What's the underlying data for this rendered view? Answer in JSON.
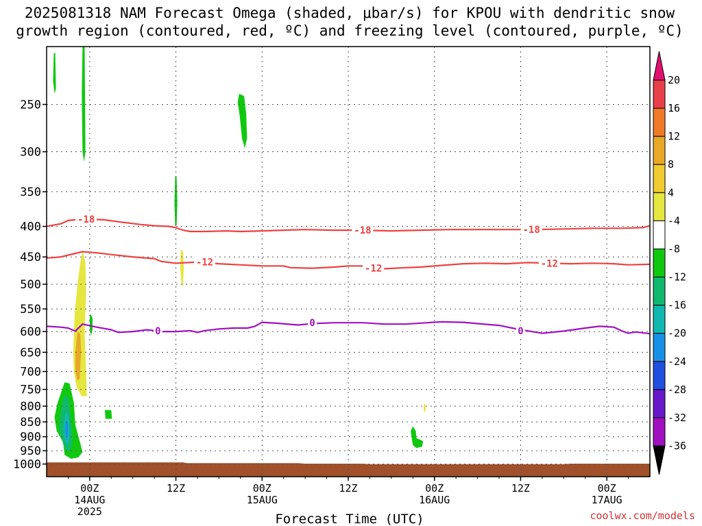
{
  "header": {
    "title_line1": "2025081318 NAM Forecast Omega (shaded, μbar/s) for KPOU with dendritic snow",
    "title_line2": "growth region (contoured, red, ºC) and freezing level (contoured, purple, ºC)"
  },
  "watermark": "coolwx.com/models",
  "chart_data": {
    "type": "time-height cross-section",
    "xlabel": "Forecast Time (UTC)",
    "xlim_hours": [
      0,
      84
    ],
    "x_ticks": [
      {
        "hour": 6,
        "label": "00Z",
        "sub1": "14AUG",
        "sub2": "2025"
      },
      {
        "hour": 18,
        "label": "12Z",
        "sub1": "",
        "sub2": ""
      },
      {
        "hour": 30,
        "label": "00Z",
        "sub1": "15AUG",
        "sub2": ""
      },
      {
        "hour": 42,
        "label": "12Z",
        "sub1": "",
        "sub2": ""
      },
      {
        "hour": 54,
        "label": "00Z",
        "sub1": "16AUG",
        "sub2": ""
      },
      {
        "hour": 66,
        "label": "12Z",
        "sub1": "",
        "sub2": ""
      },
      {
        "hour": 78,
        "label": "00Z",
        "sub1": "17AUG",
        "sub2": ""
      }
    ],
    "ylabel": "",
    "y_scale": "log-pressure",
    "ylim_hPa": [
      1050,
      200
    ],
    "y_ticks": [
      250,
      300,
      350,
      400,
      450,
      500,
      550,
      600,
      650,
      700,
      750,
      800,
      850,
      900,
      950,
      1000
    ],
    "y_tick_labels": [
      "250",
      "300",
      "350",
      "400",
      "450",
      "500",
      "550",
      "600",
      "650",
      "700",
      "750",
      "800",
      "850",
      "900",
      "950",
      "1000"
    ],
    "grid": true,
    "colorbar": {
      "labels": [
        "20",
        "16",
        "12",
        "8",
        "4",
        "-4",
        "-8",
        "-12",
        "-16",
        "-20",
        "-24",
        "-28",
        "-32",
        "-36"
      ],
      "colors": [
        "#e8404a",
        "#f07a28",
        "#e8a828",
        "#f0cc30",
        "#e6e640",
        "#ffffff",
        "#10c810",
        "#10b870",
        "#10b8b0",
        "#1890e8",
        "#2050e0",
        "#6818c8",
        "#a010c0",
        "#a8a8a8"
      ],
      "top_arrow_color": "#e0106e",
      "bottom_arrow_color": "#000000"
    },
    "contours": [
      {
        "name": "-18",
        "color": "#ee4040",
        "points": [
          [
            0,
            400
          ],
          [
            2,
            396
          ],
          [
            3,
            391
          ],
          [
            5,
            389
          ],
          [
            8,
            390
          ],
          [
            10,
            393
          ],
          [
            13,
            397
          ],
          [
            15,
            399
          ],
          [
            17,
            400
          ],
          [
            18,
            402
          ],
          [
            19,
            406
          ],
          [
            20,
            408
          ],
          [
            22,
            408
          ],
          [
            25,
            407
          ],
          [
            27,
            408
          ],
          [
            30,
            407
          ],
          [
            33,
            406
          ],
          [
            36,
            405
          ],
          [
            40,
            406
          ],
          [
            44,
            406
          ],
          [
            48,
            407
          ],
          [
            52,
            406
          ],
          [
            56,
            405
          ],
          [
            60,
            405
          ],
          [
            64,
            405
          ],
          [
            68,
            405
          ],
          [
            72,
            404
          ],
          [
            76,
            403
          ],
          [
            80,
            403
          ],
          [
            83,
            402
          ],
          [
            84,
            399
          ]
        ],
        "labels": [
          [
            5.5,
            389
          ],
          [
            44,
            406
          ],
          [
            67.5,
            405
          ]
        ]
      },
      {
        "name": "-12",
        "color": "#ee4040",
        "points": [
          [
            0,
            452
          ],
          [
            2,
            450
          ],
          [
            4,
            444
          ],
          [
            5,
            441
          ],
          [
            7,
            443
          ],
          [
            9,
            446
          ],
          [
            12,
            450
          ],
          [
            15,
            453
          ],
          [
            16,
            458
          ],
          [
            18,
            461
          ],
          [
            21,
            459
          ],
          [
            24,
            462
          ],
          [
            27,
            464
          ],
          [
            30,
            466
          ],
          [
            33,
            466
          ],
          [
            34,
            469
          ],
          [
            37,
            470
          ],
          [
            40,
            468
          ],
          [
            42,
            466
          ],
          [
            44,
            466
          ],
          [
            45,
            471
          ],
          [
            47,
            471
          ],
          [
            50,
            469
          ],
          [
            52,
            468
          ],
          [
            55,
            465
          ],
          [
            58,
            462
          ],
          [
            61,
            461
          ],
          [
            64,
            462
          ],
          [
            67,
            460
          ],
          [
            70,
            461
          ],
          [
            73,
            462
          ],
          [
            76,
            461
          ],
          [
            79,
            462
          ],
          [
            81,
            464
          ],
          [
            84,
            463
          ]
        ],
        "labels": [
          [
            22,
            459
          ],
          [
            45.5,
            470
          ],
          [
            70,
            461
          ]
        ]
      },
      {
        "name": "0",
        "color": "#a010c0",
        "points": [
          [
            0,
            588
          ],
          [
            2,
            590
          ],
          [
            3,
            592
          ],
          [
            4,
            599
          ],
          [
            5,
            583
          ],
          [
            7,
            590
          ],
          [
            9,
            596
          ],
          [
            10,
            602
          ],
          [
            12,
            600
          ],
          [
            14,
            596
          ],
          [
            16,
            600
          ],
          [
            18,
            600
          ],
          [
            20,
            598
          ],
          [
            21,
            602
          ],
          [
            22,
            598
          ],
          [
            24,
            594
          ],
          [
            26,
            592
          ],
          [
            28,
            592
          ],
          [
            29,
            588
          ],
          [
            30,
            579
          ],
          [
            32,
            581
          ],
          [
            35,
            585
          ],
          [
            37,
            582
          ],
          [
            40,
            580
          ],
          [
            44,
            580
          ],
          [
            47,
            583
          ],
          [
            50,
            583
          ],
          [
            53,
            580
          ],
          [
            55,
            578
          ],
          [
            58,
            579
          ],
          [
            60,
            582
          ],
          [
            63,
            586
          ],
          [
            66,
            596
          ],
          [
            69,
            604
          ],
          [
            72,
            599
          ],
          [
            75,
            592
          ],
          [
            77,
            588
          ],
          [
            79,
            590
          ],
          [
            80,
            598
          ],
          [
            81,
            604
          ],
          [
            82,
            601
          ],
          [
            84,
            605
          ]
        ],
        "labels": [
          [
            15.5,
            598
          ],
          [
            37,
            580
          ],
          [
            66,
            598
          ]
        ]
      }
    ],
    "omega_regions": [
      {
        "color": "#10c810",
        "pts": [
          [
            1.0,
            205
          ],
          [
            1.2,
            205
          ],
          [
            1.3,
            235
          ],
          [
            1.1,
            240
          ],
          [
            0.9,
            228
          ]
        ]
      },
      {
        "color": "#10c810",
        "pts": [
          [
            5.0,
            200
          ],
          [
            5.3,
            200
          ],
          [
            5.4,
            300
          ],
          [
            5.2,
            312
          ],
          [
            5.0,
            300
          ],
          [
            4.9,
            240
          ]
        ]
      },
      {
        "color": "#10c810",
        "pts": [
          [
            26.8,
            240
          ],
          [
            27.5,
            242
          ],
          [
            27.8,
            260
          ],
          [
            27.9,
            285
          ],
          [
            27.6,
            296
          ],
          [
            27.2,
            285
          ],
          [
            26.9,
            262
          ],
          [
            26.6,
            248
          ]
        ]
      },
      {
        "color": "#10c810",
        "pts": [
          [
            17.9,
            330
          ],
          [
            18.1,
            330
          ],
          [
            18.2,
            365
          ],
          [
            18.1,
            398
          ],
          [
            17.9,
            400
          ],
          [
            17.8,
            365
          ]
        ]
      },
      {
        "color": "#e6e640",
        "pts": [
          [
            18.7,
            438
          ],
          [
            19.0,
            440
          ],
          [
            19.1,
            470
          ],
          [
            19.0,
            500
          ],
          [
            18.8,
            505
          ],
          [
            18.6,
            470
          ]
        ]
      },
      {
        "color": "#e6e640",
        "pts": [
          [
            5.0,
            440
          ],
          [
            5.4,
            460
          ],
          [
            5.5,
            520
          ],
          [
            5.3,
            600
          ],
          [
            5.5,
            700
          ],
          [
            5.6,
            770
          ],
          [
            4.9,
            770
          ],
          [
            4.2,
            745
          ],
          [
            3.8,
            700
          ],
          [
            3.7,
            650
          ],
          [
            3.9,
            560
          ],
          [
            4.3,
            500
          ],
          [
            4.7,
            460
          ]
        ]
      },
      {
        "color": "#e8a828",
        "pts": [
          [
            4.3,
            600
          ],
          [
            4.7,
            605
          ],
          [
            4.8,
            650
          ],
          [
            4.6,
            720
          ],
          [
            4.3,
            725
          ],
          [
            4.0,
            700
          ],
          [
            4.0,
            650
          ]
        ]
      },
      {
        "color": "#10c810",
        "pts": [
          [
            6.1,
            560
          ],
          [
            6.4,
            570
          ],
          [
            6.4,
            595
          ],
          [
            6.2,
            610
          ],
          [
            6.0,
            595
          ],
          [
            6.0,
            570
          ]
        ]
      },
      {
        "color": "#10c810",
        "pts": [
          [
            8.1,
            812
          ],
          [
            9.0,
            812
          ],
          [
            9.1,
            840
          ],
          [
            8.2,
            840
          ]
        ]
      },
      {
        "color": "#10c810",
        "pts": [
          [
            2.5,
            730
          ],
          [
            3.2,
            733
          ],
          [
            3.8,
            790
          ],
          [
            4.0,
            860
          ],
          [
            4.6,
            915
          ],
          [
            5.0,
            955
          ],
          [
            4.4,
            975
          ],
          [
            3.4,
            980
          ],
          [
            2.5,
            965
          ],
          [
            2.3,
            920
          ],
          [
            1.4,
            880
          ],
          [
            1.1,
            835
          ],
          [
            1.5,
            792
          ],
          [
            2.0,
            760
          ]
        ]
      },
      {
        "color": "#10b870",
        "pts": [
          [
            2.6,
            765
          ],
          [
            3.0,
            775
          ],
          [
            3.3,
            830
          ],
          [
            3.6,
            900
          ],
          [
            3.4,
            945
          ],
          [
            2.9,
            955
          ],
          [
            2.3,
            925
          ],
          [
            1.8,
            880
          ],
          [
            1.9,
            830
          ],
          [
            2.2,
            790
          ]
        ]
      },
      {
        "color": "#10b8b0",
        "pts": [
          [
            2.7,
            815
          ],
          [
            3.1,
            835
          ],
          [
            3.2,
            900
          ],
          [
            2.9,
            930
          ],
          [
            2.5,
            910
          ],
          [
            2.4,
            860
          ]
        ]
      },
      {
        "color": "#1890e8",
        "pts": [
          [
            2.8,
            845
          ],
          [
            3.0,
            860
          ],
          [
            3.0,
            895
          ],
          [
            2.8,
            910
          ],
          [
            2.6,
            890
          ],
          [
            2.6,
            860
          ]
        ]
      },
      {
        "color": "#e6e640",
        "pts": [
          [
            52.6,
            790
          ],
          [
            52.8,
            800
          ],
          [
            52.7,
            820
          ],
          [
            52.5,
            812
          ],
          [
            52.5,
            800
          ]
        ]
      },
      {
        "color": "#10c810",
        "pts": [
          [
            51.0,
            865
          ],
          [
            51.4,
            880
          ],
          [
            51.5,
            905
          ],
          [
            52.4,
            915
          ],
          [
            52.3,
            935
          ],
          [
            51.5,
            940
          ],
          [
            51.0,
            930
          ],
          [
            50.8,
            900
          ],
          [
            50.7,
            880
          ]
        ]
      }
    ],
    "terrain": {
      "color": "#a0502a",
      "profile": [
        [
          0,
          995
        ],
        [
          10,
          995
        ],
        [
          19,
          995
        ],
        [
          19.5,
          998
        ],
        [
          35,
          998
        ],
        [
          36,
          1000
        ],
        [
          44,
          1000
        ],
        [
          45,
          1002
        ],
        [
          72,
          1002
        ],
        [
          73,
          1000
        ],
        [
          84,
          1000
        ]
      ]
    }
  }
}
